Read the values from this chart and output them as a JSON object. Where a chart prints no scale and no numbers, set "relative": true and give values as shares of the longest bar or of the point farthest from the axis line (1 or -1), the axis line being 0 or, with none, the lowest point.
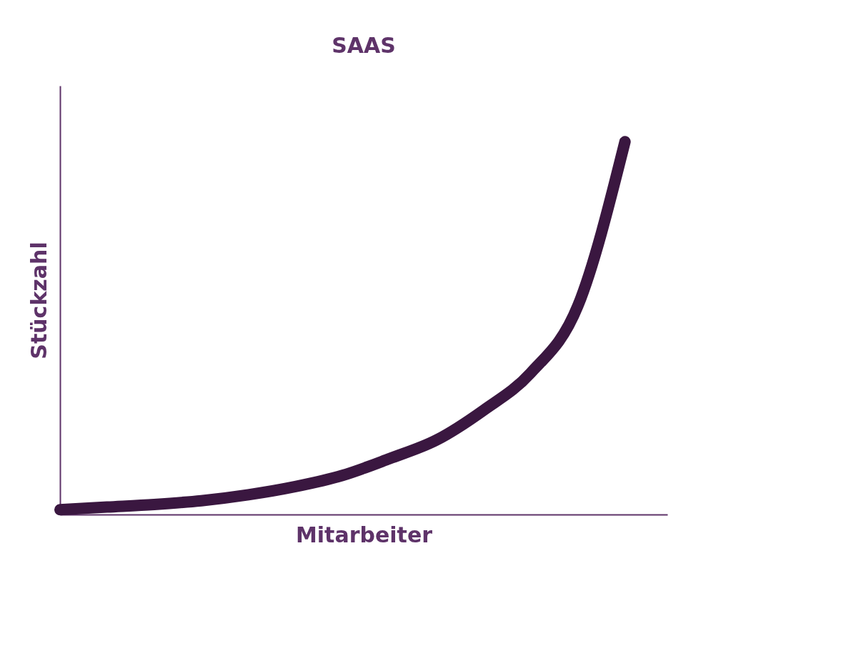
{
  "chart_data": {
    "type": "line",
    "title": "SAAS",
    "xlabel": "Mitarbeiter",
    "ylabel": "Stückzahl",
    "relative": true,
    "tick_labels": false,
    "grid": false,
    "line_style": "solid",
    "categories": [
      null,
      null,
      null,
      null,
      null,
      null,
      null,
      null,
      null,
      null,
      null,
      null,
      null
    ],
    "series": [
      {
        "color": "#3a1740",
        "values": [
          0.013,
          0.02,
          0.027,
          0.037,
          0.053,
          0.075,
          0.105,
          0.15,
          0.2,
          0.28,
          0.38,
          0.56,
          1.0
        ]
      }
    ]
  }
}
